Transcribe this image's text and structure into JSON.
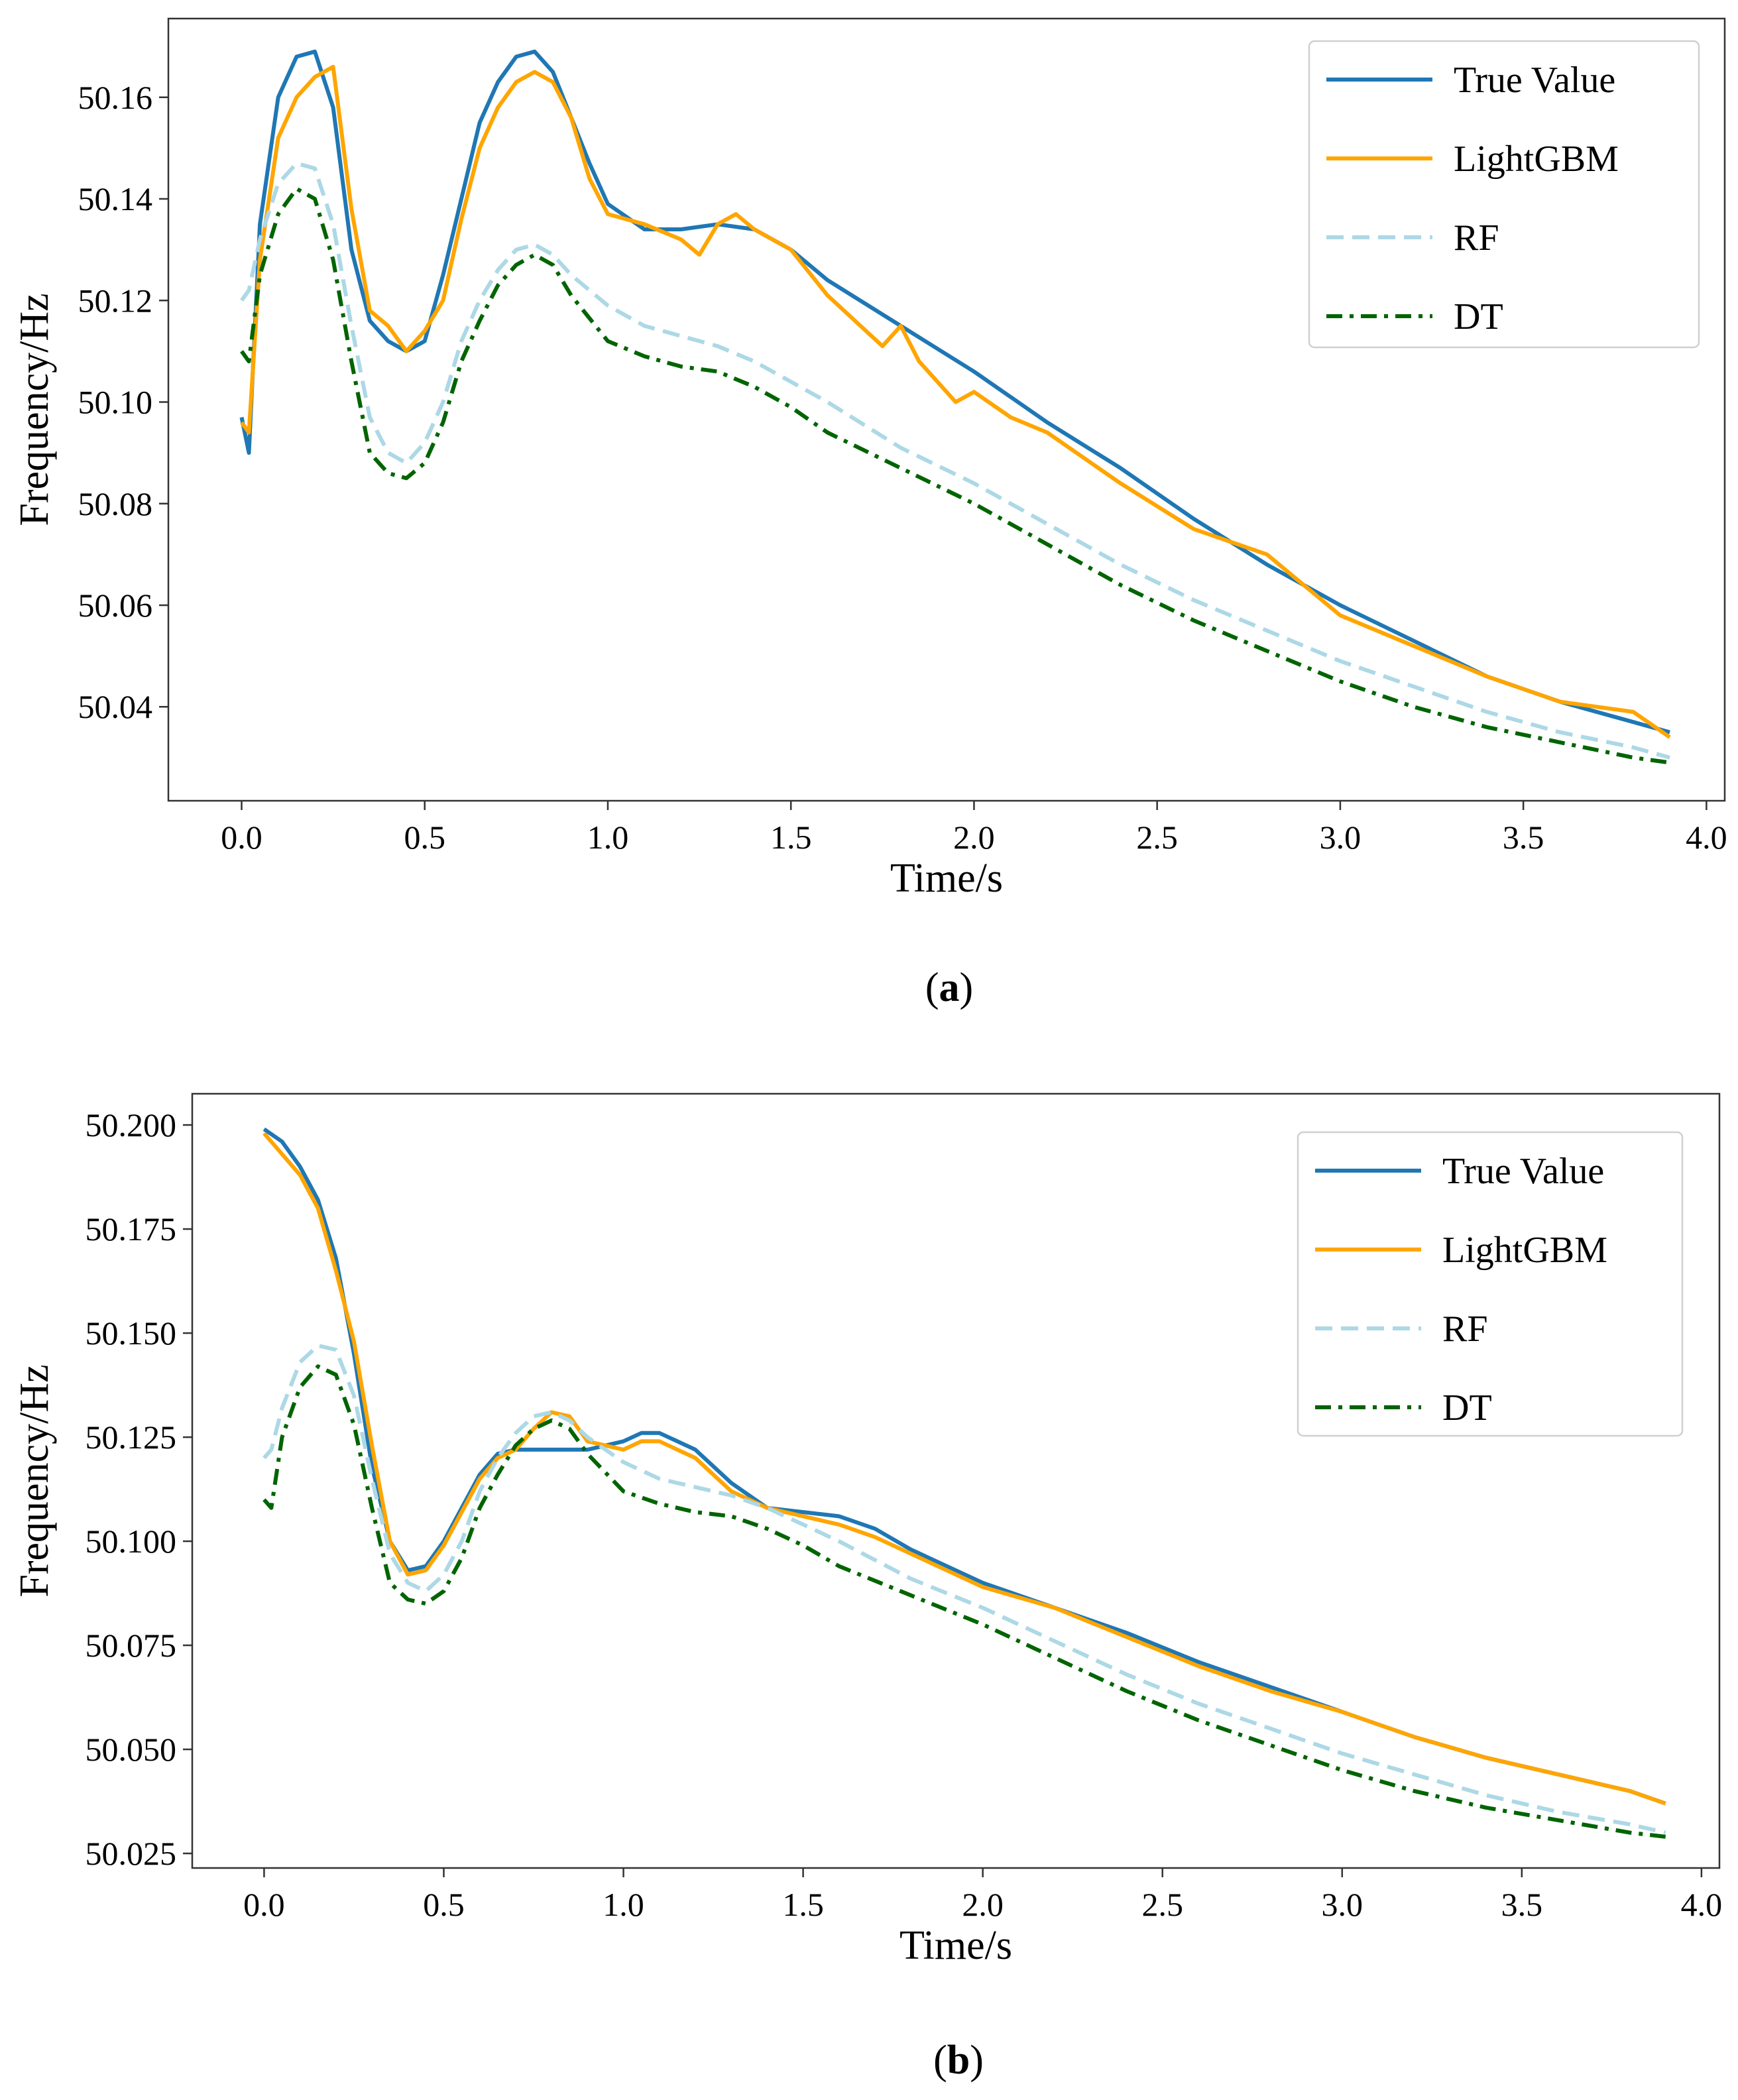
{
  "chart_data": [
    {
      "id": "a",
      "type": "line",
      "caption": "a",
      "xlabel": "Time/s",
      "ylabel": "Frequency/Hz",
      "xlim": [
        -0.2,
        4.05
      ],
      "ylim": [
        50.0215,
        50.1755
      ],
      "xticks": [
        0.0,
        0.5,
        1.0,
        1.5,
        2.0,
        2.5,
        3.0,
        3.5,
        4.0
      ],
      "xtick_labels": [
        "0.0",
        "0.5",
        "1.0",
        "1.5",
        "2.0",
        "2.5",
        "3.0",
        "3.5",
        "4.0"
      ],
      "yticks": [
        50.04,
        50.06,
        50.08,
        50.1,
        50.12,
        50.14,
        50.16
      ],
      "ytick_labels": [
        "50.04",
        "50.06",
        "50.08",
        "50.10",
        "50.12",
        "50.14",
        "50.16"
      ],
      "legend_position": "top-right",
      "series": [
        {
          "name": "True Value",
          "color": "#1f77b4",
          "style": "solid",
          "x": [
            0.0,
            0.02,
            0.05,
            0.1,
            0.15,
            0.2,
            0.25,
            0.3,
            0.35,
            0.4,
            0.45,
            0.5,
            0.55,
            0.6,
            0.65,
            0.7,
            0.75,
            0.8,
            0.85,
            0.9,
            0.95,
            1.0,
            1.1,
            1.2,
            1.3,
            1.4,
            1.5,
            1.6,
            1.8,
            2.0,
            2.2,
            2.4,
            2.6,
            2.8,
            3.0,
            3.2,
            3.4,
            3.6,
            3.8,
            3.9
          ],
          "y": [
            50.097,
            50.09,
            50.135,
            50.16,
            50.168,
            50.169,
            50.158,
            50.13,
            50.116,
            50.112,
            50.11,
            50.112,
            50.125,
            50.14,
            50.155,
            50.163,
            50.168,
            50.169,
            50.165,
            50.156,
            50.147,
            50.139,
            50.134,
            50.134,
            50.135,
            50.134,
            50.13,
            50.124,
            50.115,
            50.106,
            50.096,
            50.087,
            50.077,
            50.068,
            50.06,
            50.053,
            50.046,
            50.041,
            50.037,
            50.035
          ]
        },
        {
          "name": "LightGBM",
          "color": "#ffa500",
          "style": "solid",
          "x": [
            0.0,
            0.02,
            0.05,
            0.1,
            0.15,
            0.2,
            0.25,
            0.3,
            0.35,
            0.4,
            0.45,
            0.5,
            0.55,
            0.6,
            0.65,
            0.7,
            0.75,
            0.8,
            0.85,
            0.9,
            0.95,
            1.0,
            1.1,
            1.2,
            1.25,
            1.3,
            1.35,
            1.4,
            1.5,
            1.6,
            1.75,
            1.8,
            1.85,
            1.95,
            2.0,
            2.1,
            2.2,
            2.4,
            2.6,
            2.8,
            3.0,
            3.2,
            3.4,
            3.6,
            3.8,
            3.9
          ],
          "y": [
            50.096,
            50.094,
            50.128,
            50.152,
            50.16,
            50.164,
            50.166,
            50.138,
            50.118,
            50.115,
            50.11,
            50.114,
            50.12,
            50.136,
            50.15,
            50.158,
            50.163,
            50.165,
            50.163,
            50.156,
            50.144,
            50.137,
            50.135,
            50.132,
            50.129,
            50.135,
            50.137,
            50.134,
            50.13,
            50.121,
            50.111,
            50.115,
            50.108,
            50.1,
            50.102,
            50.097,
            50.094,
            50.084,
            50.075,
            50.07,
            50.058,
            50.052,
            50.046,
            50.041,
            50.039,
            50.034
          ]
        },
        {
          "name": "RF",
          "color": "#add8e6",
          "style": "dashed",
          "x": [
            0.0,
            0.02,
            0.05,
            0.1,
            0.15,
            0.2,
            0.25,
            0.3,
            0.35,
            0.4,
            0.45,
            0.5,
            0.55,
            0.6,
            0.65,
            0.7,
            0.75,
            0.8,
            0.85,
            0.9,
            1.0,
            1.1,
            1.2,
            1.3,
            1.4,
            1.5,
            1.6,
            1.8,
            2.0,
            2.2,
            2.4,
            2.6,
            2.8,
            3.0,
            3.2,
            3.4,
            3.6,
            3.8,
            3.9
          ],
          "y": [
            50.12,
            50.122,
            50.132,
            50.143,
            50.147,
            50.146,
            50.135,
            50.115,
            50.097,
            50.09,
            50.088,
            50.092,
            50.1,
            50.112,
            50.12,
            50.126,
            50.13,
            50.131,
            50.129,
            50.125,
            50.119,
            50.115,
            50.113,
            50.111,
            50.108,
            50.104,
            50.1,
            50.091,
            50.084,
            50.076,
            50.068,
            50.061,
            50.055,
            50.049,
            50.044,
            50.039,
            50.035,
            50.032,
            50.03
          ]
        },
        {
          "name": "DT",
          "color": "#006400",
          "style": "dashdot",
          "x": [
            0.0,
            0.02,
            0.05,
            0.1,
            0.15,
            0.2,
            0.25,
            0.3,
            0.35,
            0.4,
            0.45,
            0.5,
            0.55,
            0.6,
            0.65,
            0.7,
            0.75,
            0.8,
            0.85,
            0.9,
            1.0,
            1.1,
            1.2,
            1.3,
            1.4,
            1.5,
            1.6,
            1.8,
            2.0,
            2.2,
            2.4,
            2.6,
            2.8,
            3.0,
            3.2,
            3.4,
            3.6,
            3.8,
            3.9
          ],
          "y": [
            50.11,
            50.108,
            50.125,
            50.137,
            50.142,
            50.14,
            50.128,
            50.108,
            50.09,
            50.086,
            50.085,
            50.088,
            50.096,
            50.108,
            50.116,
            50.123,
            50.127,
            50.129,
            50.127,
            50.121,
            50.112,
            50.109,
            50.107,
            50.106,
            50.103,
            50.099,
            50.094,
            50.087,
            50.08,
            50.072,
            50.064,
            50.057,
            50.051,
            50.045,
            50.04,
            50.036,
            50.033,
            50.03,
            50.029
          ]
        }
      ]
    },
    {
      "id": "b",
      "type": "line",
      "caption": "b",
      "xlabel": "Time/s",
      "ylabel": "Frequency/Hz",
      "xlim": [
        -0.2,
        4.05
      ],
      "ylim": [
        50.0215,
        50.2075
      ],
      "xticks": [
        0.0,
        0.5,
        1.0,
        1.5,
        2.0,
        2.5,
        3.0,
        3.5,
        4.0
      ],
      "xtick_labels": [
        "0.0",
        "0.5",
        "1.0",
        "1.5",
        "2.0",
        "2.5",
        "3.0",
        "3.5",
        "4.0"
      ],
      "yticks": [
        50.025,
        50.05,
        50.075,
        50.1,
        50.125,
        50.15,
        50.175,
        50.2
      ],
      "ytick_labels": [
        "50.025",
        "50.050",
        "50.075",
        "50.100",
        "50.125",
        "50.150",
        "50.175",
        "50.200"
      ],
      "legend_position": "top-right",
      "series": [
        {
          "name": "True Value",
          "color": "#1f77b4",
          "style": "solid",
          "x": [
            0.0,
            0.05,
            0.1,
            0.15,
            0.2,
            0.25,
            0.3,
            0.35,
            0.4,
            0.45,
            0.5,
            0.55,
            0.6,
            0.65,
            0.7,
            0.8,
            0.9,
            1.0,
            1.05,
            1.1,
            1.2,
            1.3,
            1.4,
            1.5,
            1.6,
            1.7,
            1.8,
            2.0,
            2.2,
            2.4,
            2.6,
            2.8,
            3.0,
            3.2,
            3.4,
            3.6,
            3.8,
            3.9
          ],
          "y": [
            50.199,
            50.196,
            50.19,
            50.182,
            50.168,
            50.145,
            50.118,
            50.1,
            50.093,
            50.094,
            50.1,
            50.108,
            50.116,
            50.121,
            50.122,
            50.122,
            50.122,
            50.124,
            50.126,
            50.126,
            50.122,
            50.114,
            50.108,
            50.107,
            50.106,
            50.103,
            50.098,
            50.09,
            50.084,
            50.078,
            50.071,
            50.065,
            50.059,
            50.053,
            50.048,
            50.044,
            50.04,
            50.037
          ]
        },
        {
          "name": "LightGBM",
          "color": "#ffa500",
          "style": "solid",
          "x": [
            0.0,
            0.05,
            0.1,
            0.15,
            0.2,
            0.25,
            0.3,
            0.35,
            0.4,
            0.45,
            0.5,
            0.55,
            0.6,
            0.65,
            0.7,
            0.75,
            0.8,
            0.85,
            0.9,
            1.0,
            1.05,
            1.1,
            1.2,
            1.3,
            1.4,
            1.5,
            1.6,
            1.7,
            1.8,
            2.0,
            2.2,
            2.4,
            2.6,
            2.8,
            3.0,
            3.2,
            3.4,
            3.6,
            3.8,
            3.9
          ],
          "y": [
            50.198,
            50.193,
            50.188,
            50.18,
            50.165,
            50.148,
            50.123,
            50.1,
            50.092,
            50.093,
            50.099,
            50.107,
            50.115,
            50.12,
            50.122,
            50.127,
            50.131,
            50.13,
            50.124,
            50.122,
            50.124,
            50.124,
            50.12,
            50.112,
            50.108,
            50.106,
            50.104,
            50.101,
            50.097,
            50.089,
            50.084,
            50.077,
            50.07,
            50.064,
            50.059,
            50.053,
            50.048,
            50.044,
            50.04,
            50.037
          ]
        },
        {
          "name": "RF",
          "color": "#add8e6",
          "style": "dashed",
          "x": [
            0.0,
            0.02,
            0.05,
            0.1,
            0.15,
            0.2,
            0.25,
            0.3,
            0.35,
            0.4,
            0.45,
            0.5,
            0.55,
            0.6,
            0.65,
            0.7,
            0.75,
            0.8,
            0.85,
            0.9,
            1.0,
            1.1,
            1.2,
            1.3,
            1.4,
            1.5,
            1.6,
            1.8,
            2.0,
            2.2,
            2.4,
            2.6,
            2.8,
            3.0,
            3.2,
            3.4,
            3.6,
            3.8,
            3.9
          ],
          "y": [
            50.12,
            50.122,
            50.132,
            50.143,
            50.147,
            50.146,
            50.135,
            50.115,
            50.097,
            50.09,
            50.088,
            50.092,
            50.1,
            50.112,
            50.12,
            50.126,
            50.13,
            50.131,
            50.129,
            50.125,
            50.119,
            50.115,
            50.113,
            50.111,
            50.108,
            50.104,
            50.1,
            50.091,
            50.084,
            50.076,
            50.068,
            50.061,
            50.055,
            50.049,
            50.044,
            50.039,
            50.035,
            50.032,
            50.03
          ]
        },
        {
          "name": "DT",
          "color": "#006400",
          "style": "dashdot",
          "x": [
            0.0,
            0.02,
            0.05,
            0.1,
            0.15,
            0.2,
            0.25,
            0.3,
            0.35,
            0.4,
            0.45,
            0.5,
            0.55,
            0.6,
            0.65,
            0.7,
            0.75,
            0.8,
            0.85,
            0.9,
            1.0,
            1.1,
            1.2,
            1.3,
            1.4,
            1.5,
            1.6,
            1.8,
            2.0,
            2.2,
            2.4,
            2.6,
            2.8,
            3.0,
            3.2,
            3.4,
            3.6,
            3.8,
            3.9
          ],
          "y": [
            50.11,
            50.108,
            50.125,
            50.137,
            50.142,
            50.14,
            50.128,
            50.108,
            50.09,
            50.086,
            50.085,
            50.088,
            50.096,
            50.108,
            50.116,
            50.123,
            50.127,
            50.129,
            50.127,
            50.121,
            50.112,
            50.109,
            50.107,
            50.106,
            50.103,
            50.099,
            50.094,
            50.087,
            50.08,
            50.072,
            50.064,
            50.057,
            50.051,
            50.045,
            50.04,
            50.036,
            50.033,
            50.03,
            50.029
          ]
        }
      ]
    }
  ]
}
